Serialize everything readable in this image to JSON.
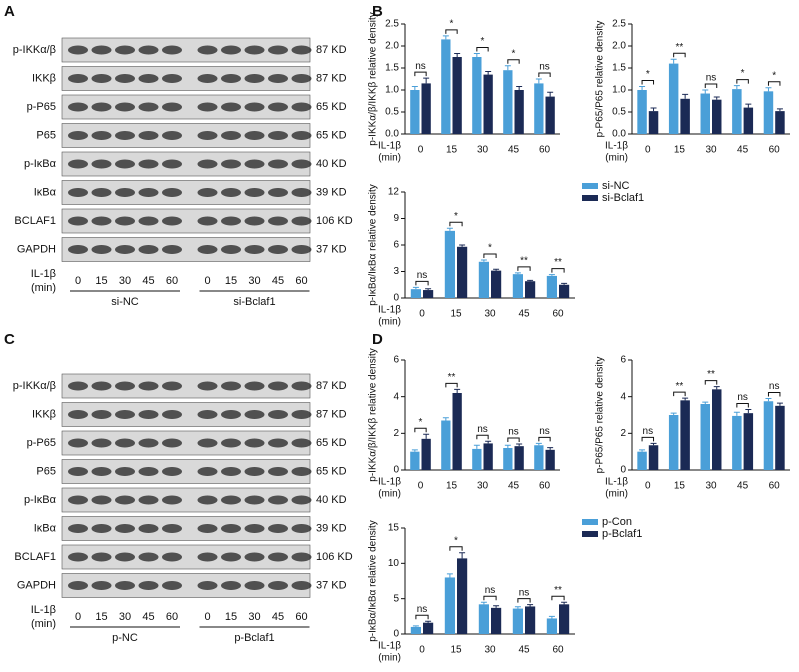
{
  "panel_labels": [
    "A",
    "B",
    "C",
    "D"
  ],
  "blots": [
    {
      "rows": [
        {
          "protein": "p-IKKα/β",
          "size": "87 KD"
        },
        {
          "protein": "IKKβ",
          "size": "87 KD"
        },
        {
          "protein": "p-P65",
          "size": "65 KD"
        },
        {
          "protein": "P65",
          "size": "65 KD"
        },
        {
          "protein": "p-IκBα",
          "size": "40 KD"
        },
        {
          "protein": "IκBα",
          "size": "39 KD"
        },
        {
          "protein": "BCLAF1",
          "size": "106 KD"
        },
        {
          "protein": "GAPDH",
          "size": "37 KD"
        }
      ],
      "time_label": "IL-1β",
      "time_unit": "(min)",
      "times": [
        "0",
        "15",
        "30",
        "45",
        "60",
        "0",
        "15",
        "30",
        "45",
        "60"
      ],
      "groups": [
        "si-NC",
        "si-Bclaf1"
      ]
    },
    {
      "rows": [
        {
          "protein": "p-IKKα/β",
          "size": "87 KD"
        },
        {
          "protein": "IKKβ",
          "size": "87 KD"
        },
        {
          "protein": "p-P65",
          "size": "65 KD"
        },
        {
          "protein": "P65",
          "size": "65 KD"
        },
        {
          "protein": "p-IκBα",
          "size": "40 KD"
        },
        {
          "protein": "IκBα",
          "size": "39 KD"
        },
        {
          "protein": "BCLAF1",
          "size": "106 KD"
        },
        {
          "protein": "GAPDH",
          "size": "37 KD"
        }
      ],
      "time_label": "IL-1β",
      "time_unit": "(min)",
      "times": [
        "0",
        "15",
        "30",
        "45",
        "60",
        "0",
        "15",
        "30",
        "45",
        "60"
      ],
      "groups": [
        "p-NC",
        "p-Bclaf1"
      ]
    }
  ],
  "chart_data": [
    {
      "type": "bar",
      "ylabel": "p-IKKα/β/IKKβ relative density",
      "xlabel": "IL-1β",
      "xlabel_unit": "(min)",
      "categories": [
        "0",
        "15",
        "30",
        "45",
        "60"
      ],
      "series": [
        {
          "color": "#4a9fd8",
          "values": [
            1.0,
            2.15,
            1.75,
            1.45,
            1.15
          ],
          "errors": [
            0.08,
            0.08,
            0.08,
            0.1,
            0.1
          ]
        },
        {
          "color": "#1b2a55",
          "values": [
            1.15,
            1.75,
            1.35,
            1.0,
            0.85
          ],
          "errors": [
            0.12,
            0.08,
            0.07,
            0.08,
            0.1
          ]
        }
      ],
      "significance": [
        "ns",
        "*",
        "*",
        "*",
        "ns"
      ],
      "ylim": [
        0,
        2.5
      ],
      "yticks": [
        {
          "value": 0,
          "label": "0.0"
        },
        0.5,
        {
          "value": 1,
          "label": "1.0"
        },
        1.5,
        {
          "value": 2,
          "label": "2.0"
        },
        2.5
      ]
    },
    {
      "type": "bar",
      "ylabel": "p-P65/P65 relative density",
      "xlabel": "IL-1β",
      "xlabel_unit": "(min)",
      "categories": [
        "0",
        "15",
        "30",
        "45",
        "60"
      ],
      "series": [
        {
          "color": "#4a9fd8",
          "values": [
            1.0,
            1.6,
            0.92,
            1.02,
            0.97
          ],
          "errors": [
            0.08,
            0.1,
            0.08,
            0.08,
            0.08
          ]
        },
        {
          "color": "#1b2a55",
          "values": [
            0.52,
            0.8,
            0.78,
            0.6,
            0.52
          ],
          "errors": [
            0.07,
            0.1,
            0.06,
            0.08,
            0.05
          ]
        }
      ],
      "significance": [
        "*",
        "**",
        "ns",
        "*",
        "*"
      ],
      "ylim": [
        0,
        2.5
      ],
      "yticks": [
        {
          "value": 0,
          "label": "0.0"
        },
        0.5,
        {
          "value": 1,
          "label": "1.0"
        },
        1.5,
        {
          "value": 2,
          "label": "2.0"
        },
        2.5
      ]
    },
    {
      "type": "bar",
      "ylabel": "p-IκBα/IκBα relative density",
      "xlabel": "IL-1β",
      "xlabel_unit": "(min)",
      "categories": [
        "0",
        "15",
        "30",
        "45",
        "60"
      ],
      "series": [
        {
          "name": "si-NC",
          "color": "#4a9fd8",
          "values": [
            1.0,
            7.6,
            4.1,
            2.7,
            2.5
          ],
          "errors": [
            0.2,
            0.3,
            0.2,
            0.15,
            0.15
          ]
        },
        {
          "name": "si-Bclaf1",
          "color": "#1b2a55",
          "values": [
            0.9,
            5.8,
            3.1,
            1.9,
            1.5
          ],
          "errors": [
            0.15,
            0.2,
            0.15,
            0.1,
            0.15
          ]
        }
      ],
      "significance": [
        "ns",
        "*",
        "*",
        "**",
        "**"
      ],
      "ylim": [
        0,
        12
      ],
      "yticks": [
        0,
        3,
        6,
        9,
        12
      ]
    },
    {
      "type": "bar",
      "ylabel": "p-IKKα/β/IKKβ relative density",
      "xlabel": "IL-1β",
      "xlabel_unit": "(min)",
      "categories": [
        "0",
        "15",
        "30",
        "45",
        "60"
      ],
      "series": [
        {
          "color": "#4a9fd8",
          "values": [
            1.0,
            2.7,
            1.15,
            1.2,
            1.35
          ],
          "errors": [
            0.1,
            0.15,
            0.2,
            0.15,
            0.1
          ]
        },
        {
          "color": "#1b2a55",
          "values": [
            1.7,
            4.2,
            1.45,
            1.3,
            1.1
          ],
          "errors": [
            0.25,
            0.2,
            0.12,
            0.12,
            0.12
          ]
        }
      ],
      "significance": [
        "*",
        "**",
        "ns",
        "ns",
        "ns"
      ],
      "ylim": [
        0,
        6
      ],
      "yticks": [
        0,
        2,
        4,
        6
      ]
    },
    {
      "type": "bar",
      "ylabel": "p-P65/P65 relative density",
      "xlabel": "IL-1β",
      "xlabel_unit": "(min)",
      "categories": [
        "0",
        "15",
        "30",
        "45",
        "60"
      ],
      "series": [
        {
          "color": "#4a9fd8",
          "values": [
            1.0,
            3.0,
            3.6,
            2.95,
            3.75
          ],
          "errors": [
            0.1,
            0.1,
            0.1,
            0.2,
            0.15
          ]
        },
        {
          "color": "#1b2a55",
          "values": [
            1.35,
            3.8,
            4.4,
            3.1,
            3.5
          ],
          "errors": [
            0.1,
            0.12,
            0.15,
            0.2,
            0.15
          ]
        }
      ],
      "significance": [
        "ns",
        "**",
        "**",
        "ns",
        "ns"
      ],
      "ylim": [
        0,
        6
      ],
      "yticks": [
        0,
        2,
        4,
        6
      ]
    },
    {
      "type": "bar",
      "ylabel": "p-IκBα/IκBα relative density",
      "xlabel": "IL-1β",
      "xlabel_unit": "(min)",
      "categories": [
        "0",
        "15",
        "30",
        "45",
        "60"
      ],
      "series": [
        {
          "name": "p-Con",
          "color": "#4a9fd8",
          "values": [
            1.0,
            8.0,
            4.2,
            3.6,
            2.2
          ],
          "errors": [
            0.15,
            0.5,
            0.3,
            0.25,
            0.3
          ]
        },
        {
          "name": "p-Bclaf1",
          "color": "#1b2a55",
          "values": [
            1.6,
            10.7,
            3.7,
            3.9,
            4.2
          ],
          "errors": [
            0.2,
            0.8,
            0.3,
            0.25,
            0.3
          ]
        }
      ],
      "significance": [
        "ns",
        "*",
        "ns",
        "ns",
        "**"
      ],
      "ylim": [
        0,
        15
      ],
      "yticks": [
        0,
        5,
        10,
        15
      ]
    }
  ]
}
